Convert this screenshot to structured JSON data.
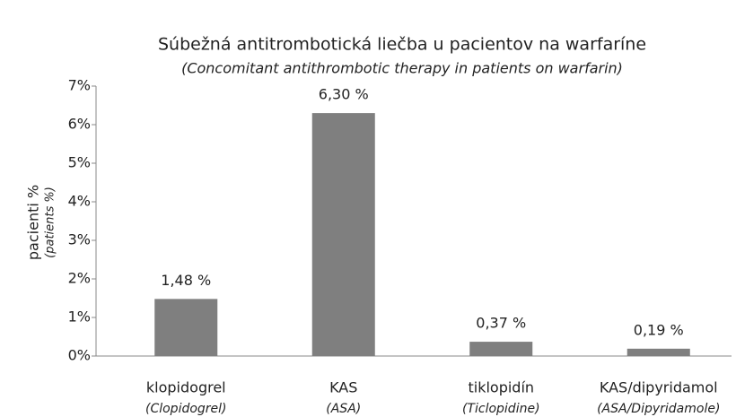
{
  "chart_data": {
    "type": "bar",
    "title": "Súbežná antitrombotická liečba u pacientov na warfaríne",
    "subtitle": "(Concomitant antithrombotic therapy in patients on warfarin)",
    "y_label": "pacienti %",
    "y_label_subtitle": "(patients %)",
    "categories": [
      "klopidogrel",
      "KAS",
      "tiklopidín",
      "KAS/dipyridamol"
    ],
    "category_subtitles": [
      "(Clopidogrel)",
      "(ASA)",
      "(Ticlopidine)",
      "(ASA/Dipyridamole)"
    ],
    "values": [
      1.48,
      6.3,
      0.37,
      0.19
    ],
    "value_labels": [
      "1,48 %",
      "6,30 %",
      "0,37 %",
      "0,19 %"
    ],
    "color": "#7f7f7f",
    "ylim": [
      0,
      7
    ],
    "yticks": [
      {
        "value": 0,
        "label": "0%"
      },
      {
        "value": 1,
        "label": "1%"
      },
      {
        "value": 2,
        "label": "2%"
      },
      {
        "value": 3,
        "label": "3%"
      },
      {
        "value": 4,
        "label": "4%"
      },
      {
        "value": 5,
        "label": "5%"
      },
      {
        "value": 6,
        "label": "6%"
      },
      {
        "value": 7,
        "label": "7%"
      }
    ],
    "grid": false
  }
}
